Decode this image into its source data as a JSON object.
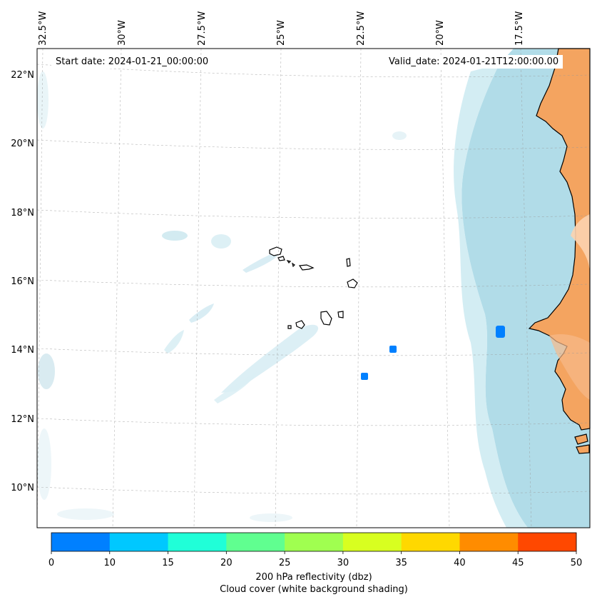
{
  "map": {
    "start_date": "Start date: 2024-01-21_00:00:00",
    "valid_date": "Valid_date: 2024-01-21T12:00:00.00",
    "lon_labels": [
      "32.5°W",
      "30°W",
      "27.5°W",
      "25°W",
      "22.5°W",
      "20°W",
      "17.5°W"
    ],
    "lat_labels": [
      "22°N",
      "20°N",
      "18°N",
      "16°N",
      "14°N",
      "12°N",
      "10°N"
    ]
  },
  "colorbar": {
    "ticks": [
      "0",
      "10",
      "15",
      "20",
      "25",
      "30",
      "35",
      "40",
      "45",
      "50"
    ],
    "colors": [
      "#0080ff",
      "#00c8ff",
      "#20ffd8",
      "#60ff90",
      "#a0ff50",
      "#d8ff20",
      "#ffd800",
      "#ff8c00",
      "#ff4800"
    ],
    "title_line1": "200 hPa reflectivity (dbz)",
    "title_line2": "Cloud cover (white background shading)"
  },
  "colors": {
    "land": "#f4a460",
    "cloud": "#a8d8e6",
    "reflectivity": "#0080ff"
  }
}
